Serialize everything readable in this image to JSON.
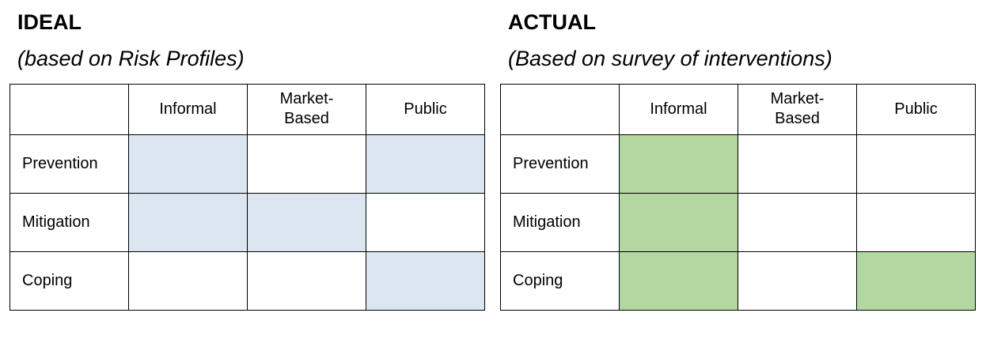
{
  "ideal": {
    "title": "IDEAL",
    "subtitle": "(based on Risk Profiles)",
    "highlight_color": "#dce6f1",
    "table": {
      "headers": [
        "",
        "Informal",
        "Market-Based",
        "Public"
      ],
      "rows": [
        {
          "label": "Prevention",
          "highlights": [
            true,
            false,
            true
          ]
        },
        {
          "label": "Mitigation",
          "highlights": [
            true,
            true,
            false
          ]
        },
        {
          "label": "Coping",
          "highlights": [
            false,
            false,
            true
          ]
        }
      ]
    }
  },
  "actual": {
    "title": "ACTUAL",
    "subtitle": "(Based on survey of interventions)",
    "highlight_color": "#b2d7a0",
    "table": {
      "headers": [
        "",
        "Informal",
        "Market-Based",
        "Public"
      ],
      "rows": [
        {
          "label": "Prevention",
          "highlights": [
            true,
            false,
            false
          ]
        },
        {
          "label": "Mitigation",
          "highlights": [
            true,
            false,
            false
          ]
        },
        {
          "label": "Coping",
          "highlights": [
            true,
            false,
            true
          ]
        }
      ]
    }
  }
}
